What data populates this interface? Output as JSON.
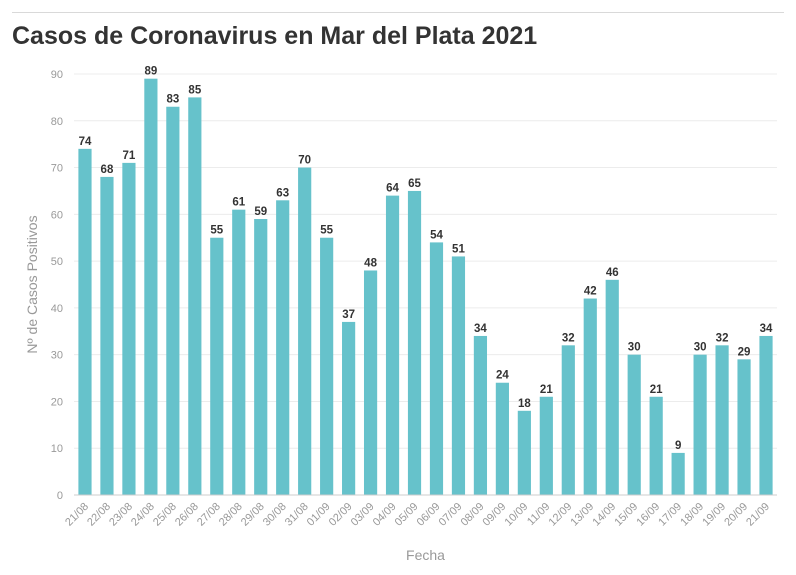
{
  "title": "Casos de Coronavirus en Mar del Plata 2021",
  "colors": {
    "bar": "#66c2cb",
    "grid": "#ececec",
    "text": "#333333",
    "axis_text": "#999999"
  },
  "chart_data": {
    "type": "bar",
    "title": "Casos de Coronavirus en Mar del Plata 2021",
    "xlabel": "Fecha",
    "ylabel": "Nº de Casos Positivos",
    "ylim": [
      0,
      90
    ],
    "yticks": [
      0,
      10,
      20,
      30,
      40,
      50,
      60,
      70,
      80,
      90
    ],
    "grid": true,
    "categories": [
      "21/08",
      "22/08",
      "23/08",
      "24/08",
      "25/08",
      "26/08",
      "27/08",
      "28/08",
      "29/08",
      "30/08",
      "31/08",
      "01/09",
      "02/09",
      "03/09",
      "04/09",
      "05/09",
      "06/09",
      "07/09",
      "08/09",
      "09/09",
      "10/09",
      "11/09",
      "12/09",
      "13/09",
      "14/09",
      "15/09",
      "16/09",
      "17/09",
      "18/09",
      "19/09",
      "20/09",
      "21/09"
    ],
    "values": [
      74,
      68,
      71,
      89,
      83,
      85,
      55,
      61,
      59,
      63,
      70,
      55,
      37,
      48,
      64,
      65,
      54,
      51,
      34,
      24,
      18,
      21,
      32,
      42,
      46,
      30,
      21,
      9,
      30,
      32,
      29,
      34
    ]
  }
}
